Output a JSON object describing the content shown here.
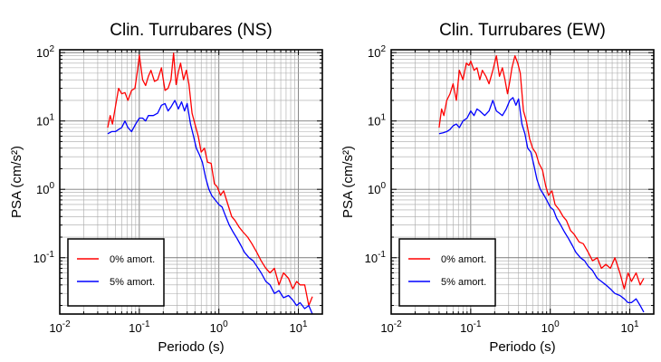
{
  "chart_data": [
    {
      "type": "line",
      "title": "Clin. Turrubares (NS)",
      "xlabel": "Periodo (s)",
      "ylabel": "PSA (cm/s²)",
      "xscale": "log",
      "yscale": "log",
      "xlim": [
        0.01,
        20
      ],
      "ylim": [
        0.015,
        110
      ],
      "grid": true,
      "legend_position": "bottom-left",
      "x_ticks": [
        {
          "base": "10",
          "exp": "-2"
        },
        {
          "base": "10",
          "exp": "-1"
        },
        {
          "base": "10",
          "exp": "0"
        },
        {
          "base": "10",
          "exp": "1"
        }
      ],
      "y_ticks": [
        {
          "base": "10",
          "exp": "-1"
        },
        {
          "base": "10",
          "exp": "0"
        },
        {
          "base": "10",
          "exp": "1"
        },
        {
          "base": "10",
          "exp": "2"
        }
      ],
      "series": [
        {
          "name": "0% amort.",
          "color": "#ff0000",
          "x": [
            0.04,
            0.043,
            0.046,
            0.05,
            0.055,
            0.06,
            0.066,
            0.072,
            0.08,
            0.088,
            0.095,
            0.1,
            0.11,
            0.12,
            0.13,
            0.14,
            0.155,
            0.17,
            0.19,
            0.21,
            0.23,
            0.25,
            0.27,
            0.29,
            0.31,
            0.33,
            0.36,
            0.39,
            0.42,
            0.46,
            0.5,
            0.55,
            0.6,
            0.66,
            0.72,
            0.8,
            0.88,
            0.95,
            1.05,
            1.15,
            1.3,
            1.45,
            1.6,
            1.8,
            2.0,
            2.3,
            2.6,
            3.0,
            3.4,
            3.9,
            4.4,
            5.0,
            5.7,
            6.5,
            7.5,
            8.5,
            9.5,
            10.5,
            12,
            13.5,
            15
          ],
          "y": [
            8,
            12,
            9,
            16,
            30,
            25,
            26,
            20,
            28,
            30,
            55,
            92,
            40,
            33,
            45,
            55,
            38,
            40,
            60,
            28,
            30,
            40,
            98,
            34,
            52,
            70,
            40,
            55,
            35,
            13,
            9,
            6,
            3.5,
            4,
            2.5,
            2.4,
            1.2,
            1.1,
            0.82,
            0.95,
            0.6,
            0.4,
            0.35,
            0.28,
            0.24,
            0.2,
            0.16,
            0.12,
            0.09,
            0.07,
            0.06,
            0.07,
            0.04,
            0.06,
            0.05,
            0.035,
            0.045,
            0.04,
            0.04,
            0.02,
            0.027
          ]
        },
        {
          "name": "5% amort.",
          "color": "#0000ff",
          "x": [
            0.04,
            0.045,
            0.05,
            0.055,
            0.06,
            0.066,
            0.072,
            0.08,
            0.09,
            0.1,
            0.11,
            0.12,
            0.13,
            0.15,
            0.17,
            0.19,
            0.21,
            0.23,
            0.25,
            0.28,
            0.31,
            0.34,
            0.37,
            0.4,
            0.44,
            0.48,
            0.52,
            0.57,
            0.62,
            0.68,
            0.75,
            0.82,
            0.9,
            1.0,
            1.1,
            1.2,
            1.35,
            1.5,
            1.7,
            1.9,
            2.1,
            2.4,
            2.7,
            3.0,
            3.4,
            3.9,
            4.4,
            5.0,
            5.7,
            6.5,
            7.5,
            8.5,
            9.5,
            10.5,
            12,
            13.5,
            15
          ],
          "y": [
            6.5,
            7,
            7,
            7.5,
            8,
            10,
            8,
            7,
            9,
            11,
            11,
            10,
            12,
            12,
            13,
            17,
            18,
            14,
            16,
            20,
            15,
            19,
            14,
            18,
            9,
            6,
            4,
            3.2,
            2.5,
            1.5,
            1.0,
            0.8,
            0.7,
            0.6,
            0.55,
            0.42,
            0.3,
            0.24,
            0.19,
            0.15,
            0.12,
            0.1,
            0.09,
            0.075,
            0.06,
            0.045,
            0.04,
            0.03,
            0.033,
            0.026,
            0.028,
            0.024,
            0.02,
            0.022,
            0.018,
            0.02,
            0.015
          ]
        }
      ]
    },
    {
      "type": "line",
      "title": "Clin. Turrubares (EW)",
      "xlabel": "Periodo (s)",
      "ylabel": "PSA (cm/s²)",
      "xscale": "log",
      "yscale": "log",
      "xlim": [
        0.01,
        20
      ],
      "ylim": [
        0.015,
        110
      ],
      "grid": true,
      "legend_position": "bottom-left",
      "x_ticks": [
        {
          "base": "10",
          "exp": "-2"
        },
        {
          "base": "10",
          "exp": "-1"
        },
        {
          "base": "10",
          "exp": "0"
        },
        {
          "base": "10",
          "exp": "1"
        }
      ],
      "y_ticks": [
        {
          "base": "10",
          "exp": "-1"
        },
        {
          "base": "10",
          "exp": "0"
        },
        {
          "base": "10",
          "exp": "1"
        },
        {
          "base": "10",
          "exp": "2"
        }
      ],
      "series": [
        {
          "name": "0% amort.",
          "color": "#ff0000",
          "x": [
            0.04,
            0.043,
            0.046,
            0.05,
            0.055,
            0.06,
            0.066,
            0.072,
            0.08,
            0.088,
            0.095,
            0.1,
            0.11,
            0.12,
            0.13,
            0.14,
            0.155,
            0.17,
            0.19,
            0.21,
            0.23,
            0.25,
            0.27,
            0.29,
            0.31,
            0.33,
            0.36,
            0.39,
            0.42,
            0.46,
            0.5,
            0.55,
            0.6,
            0.66,
            0.72,
            0.8,
            0.88,
            0.95,
            1.05,
            1.15,
            1.3,
            1.45,
            1.6,
            1.8,
            2.0,
            2.3,
            2.6,
            3.0,
            3.4,
            3.9,
            4.4,
            5.0,
            5.7,
            6.5,
            7.5,
            8.5,
            9.5,
            10.5,
            12,
            13.5,
            15
          ],
          "y": [
            8,
            15,
            12,
            20,
            25,
            35,
            20,
            55,
            40,
            70,
            65,
            75,
            55,
            60,
            40,
            55,
            45,
            35,
            55,
            90,
            45,
            60,
            40,
            25,
            38,
            60,
            90,
            70,
            50,
            14,
            10,
            5.5,
            4,
            3.4,
            2.4,
            1.9,
            1.1,
            0.82,
            0.95,
            0.6,
            0.5,
            0.4,
            0.35,
            0.25,
            0.22,
            0.17,
            0.16,
            0.12,
            0.09,
            0.1,
            0.07,
            0.08,
            0.07,
            0.1,
            0.06,
            0.035,
            0.06,
            0.045,
            0.06,
            0.04,
            0.05
          ]
        },
        {
          "name": "5% amort.",
          "color": "#0000ff",
          "x": [
            0.04,
            0.045,
            0.05,
            0.055,
            0.06,
            0.066,
            0.072,
            0.08,
            0.09,
            0.1,
            0.11,
            0.12,
            0.13,
            0.15,
            0.17,
            0.19,
            0.21,
            0.23,
            0.25,
            0.28,
            0.31,
            0.34,
            0.37,
            0.4,
            0.44,
            0.48,
            0.52,
            0.57,
            0.62,
            0.68,
            0.75,
            0.82,
            0.9,
            1.0,
            1.1,
            1.2,
            1.35,
            1.5,
            1.7,
            1.9,
            2.1,
            2.4,
            2.7,
            3.0,
            3.4,
            3.9,
            4.4,
            5.0,
            5.7,
            6.5,
            7.5,
            8.5,
            9.5,
            10.5,
            12,
            13.5,
            15
          ],
          "y": [
            6.5,
            6.7,
            7,
            7.5,
            8.5,
            9,
            8,
            10,
            11,
            14,
            12,
            15,
            14,
            12,
            14,
            20,
            14,
            13,
            12,
            15,
            20,
            22,
            17,
            21,
            9,
            6.5,
            4,
            3.5,
            2.3,
            1.4,
            1.0,
            0.85,
            0.7,
            0.55,
            0.5,
            0.38,
            0.3,
            0.24,
            0.19,
            0.15,
            0.12,
            0.1,
            0.09,
            0.075,
            0.065,
            0.05,
            0.045,
            0.04,
            0.035,
            0.03,
            0.028,
            0.025,
            0.022,
            0.022,
            0.025,
            0.02,
            0.016
          ]
        }
      ]
    }
  ]
}
